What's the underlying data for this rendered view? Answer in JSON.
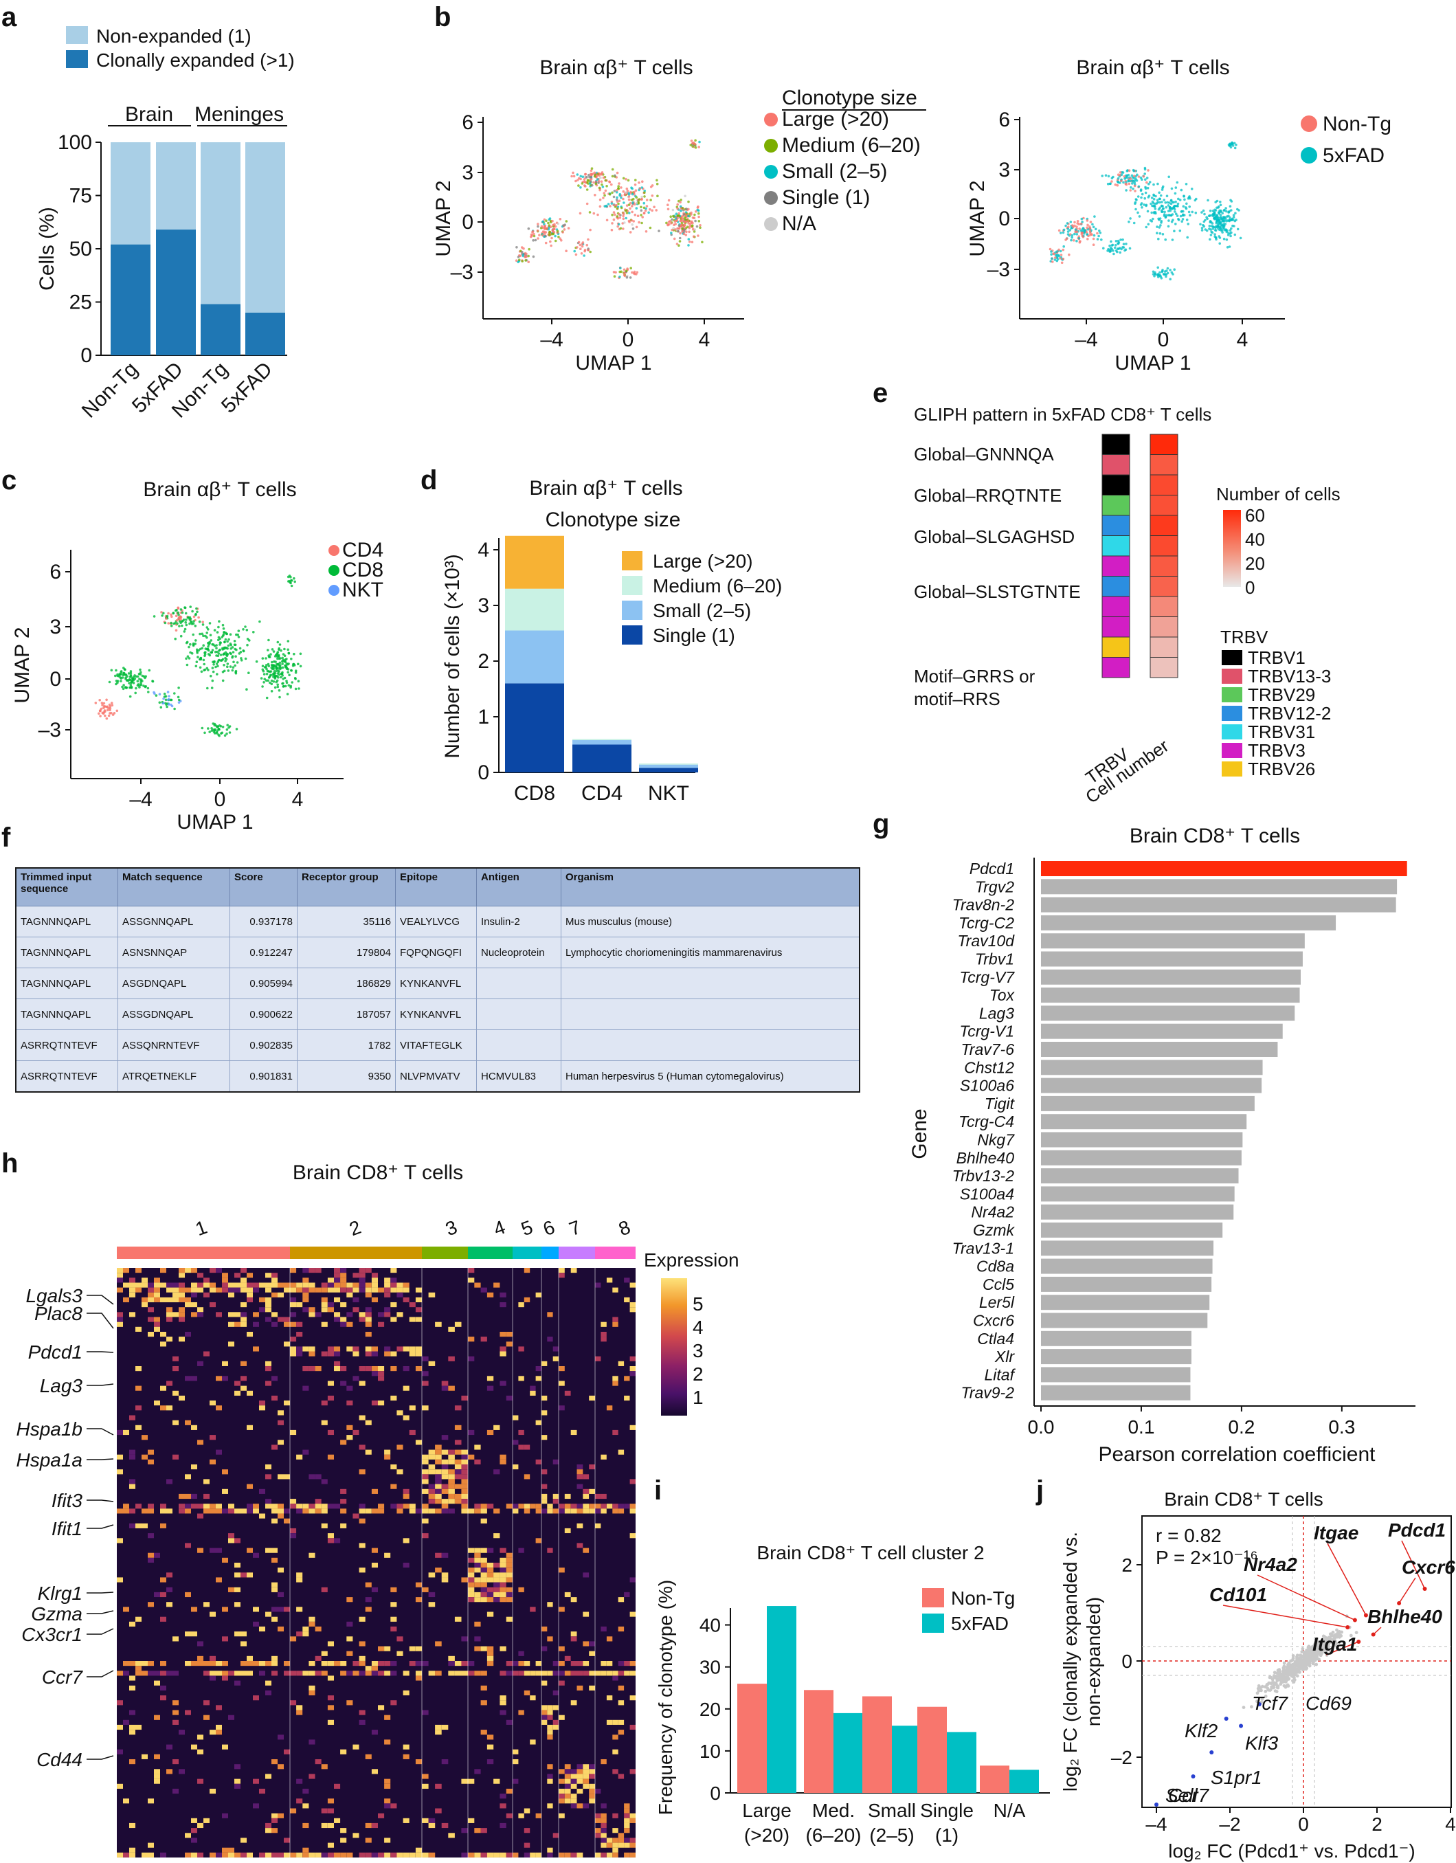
{
  "panel_letters": [
    "a",
    "b",
    "c",
    "d",
    "e",
    "f",
    "g",
    "h",
    "i",
    "j"
  ],
  "colors": {
    "light_blue": "#a9cfe6",
    "dark_blue": "#1f77b4",
    "large": "#f8766d",
    "medium": "#7cae00",
    "small": "#00bfc4",
    "single": "#7f7f7f",
    "na": "#cccccc",
    "nontg": "#f8766d",
    "fxfad": "#00bfc4",
    "cd4": "#f8766d",
    "cd8": "#00ba38",
    "nkt": "#619cff",
    "d_large": "#f7b234",
    "d_medium": "#c9f2e4",
    "d_small": "#8cc2f2",
    "d_single": "#0b47a5",
    "gbar_top": "#ff2a0a",
    "gbar": "#b3b3b3",
    "red_label": "#e0201a",
    "blue_label": "#2840d0"
  },
  "chart_data": [
    {
      "panel": "a",
      "type": "bar",
      "legend": [
        "Non-expanded (1)",
        "Clonally expanded (>1)"
      ],
      "group_labels": [
        "Brain",
        "Meninges"
      ],
      "categories": [
        "Non-Tg",
        "5xFAD",
        "Non-Tg",
        "5xFAD"
      ],
      "series": [
        {
          "name": "Clonally expanded (>1)",
          "values": [
            52,
            59,
            24,
            20
          ]
        }
      ],
      "ylabel": "Cells (%)",
      "yticks": [
        "0",
        "25",
        "50",
        "75",
        "100"
      ],
      "ylim": [
        0,
        100
      ]
    },
    {
      "panel": "b1",
      "type": "scatter",
      "title": "Brain αβ⁺ T cells",
      "legend_title": "Clonotype size",
      "legend": [
        "Large (>20)",
        "Medium (6–20)",
        "Small (2–5)",
        "Single (1)",
        "N/A"
      ],
      "xlabel": "UMAP 1",
      "ylabel": "UMAP 2",
      "xticks": [
        "–4",
        "0",
        "4"
      ],
      "yticks": [
        "6",
        "3",
        "0",
        "–3"
      ]
    },
    {
      "panel": "b2",
      "type": "scatter",
      "title": "Brain αβ⁺ T cells",
      "legend": [
        "Non-Tg",
        "5xFAD"
      ],
      "xlabel": "UMAP 1",
      "ylabel": "UMAP 2",
      "xticks": [
        "–4",
        "0",
        "4"
      ],
      "yticks": [
        "6",
        "3",
        "0",
        "–3"
      ]
    },
    {
      "panel": "c",
      "type": "scatter",
      "title": "Brain αβ⁺ T cells",
      "legend": [
        "CD4",
        "CD8",
        "NKT"
      ],
      "xlabel": "UMAP 1",
      "ylabel": "UMAP 2",
      "xticks": [
        "–4",
        "0",
        "4"
      ],
      "yticks": [
        "6",
        "3",
        "0",
        "–3"
      ]
    },
    {
      "panel": "d",
      "type": "bar",
      "title": "Brain αβ⁺ T cells",
      "subtitle": "Clonotype size",
      "categories": [
        "CD8",
        "CD4",
        "NKT"
      ],
      "legend": [
        "Large (>20)",
        "Medium (6–20)",
        "Small (2–5)",
        "Single (1)"
      ],
      "series": [
        {
          "name": "Single (1)",
          "values": [
            1.6,
            0.5,
            0.08
          ]
        },
        {
          "name": "Small (2–5)",
          "values": [
            0.95,
            0.08,
            0.06
          ]
        },
        {
          "name": "Medium (6–20)",
          "values": [
            0.75,
            0.02,
            0.02
          ]
        },
        {
          "name": "Large (>20)",
          "values": [
            0.95,
            0.0,
            0.0
          ]
        }
      ],
      "ylabel": "Number of cells (×10³)",
      "yticks": [
        "0",
        "1",
        "2",
        "3",
        "4"
      ],
      "ylim": [
        0,
        4.3
      ]
    },
    {
      "panel": "e",
      "type": "heatmap",
      "title": "GLIPH pattern in 5xFAD CD8⁺ T cells",
      "row_groups": [
        "Global–GNNNQA",
        "Global–RRQTNTE",
        "Global–SLGAGHSD",
        "Global–SLSTGTNTE",
        "Motif–GRRS or",
        "motif–RRS"
      ],
      "trbv_column": [
        "TRBV1",
        "TRBV13-3",
        "TRBV1",
        "TRBV29",
        "TRBV12-2",
        "TRBV31",
        "TRBV3",
        "TRBV12-2",
        "TRBV3",
        "TRBV3",
        "TRBV26",
        "TRBV3"
      ],
      "cell_number": [
        60,
        45,
        50,
        48,
        55,
        50,
        45,
        42,
        30,
        22,
        15,
        12
      ],
      "column_labels": [
        "TRBV",
        "Cell number"
      ],
      "colorbar_title": "Number of cells",
      "colorbar_ticks": [
        "60",
        "40",
        "20",
        "0"
      ],
      "trbv_legend_title": "TRBV",
      "trbv_legend": [
        "TRBV1",
        "TRBV13-3",
        "TRBV29",
        "TRBV12-2",
        "TRBV31",
        "TRBV3",
        "TRBV26"
      ],
      "trbv_colors": [
        "#000000",
        "#e0526a",
        "#5cc85a",
        "#2b8ee0",
        "#2fd8e8",
        "#d21ec4",
        "#f5c518"
      ]
    },
    {
      "panel": "f",
      "type": "table",
      "columns": [
        "Trimmed input sequence",
        "Match sequence",
        "Score",
        "Receptor group",
        "Epitope",
        "Antigen",
        "Organism"
      ],
      "rows": [
        [
          "TAGNNNQAPL",
          "ASSGNNQAPL",
          "0.937178",
          "35116",
          "VEALYLVCG",
          "Insulin-2",
          "Mus musculus (mouse)"
        ],
        [
          "TAGNNNQAPL",
          "ASNSNNQAP",
          "0.912247",
          "179804",
          "FQPQNGQFI",
          "Nucleoprotein",
          "Lymphocytic choriomeningitis mammarenavirus"
        ],
        [
          "TAGNNNQAPL",
          "ASGDNQAPL",
          "0.905994",
          "186829",
          "KYNKANVFL",
          "",
          ""
        ],
        [
          "TAGNNNQAPL",
          "ASSGDNQAPL",
          "0.900622",
          "187057",
          "KYNKANVFL",
          "",
          ""
        ],
        [
          "ASRRQTNTEVF",
          "ASSQNRNTEVF",
          "0.902835",
          "1782",
          "VITAFTEGLK",
          "",
          ""
        ],
        [
          "ASRRQTNTEVF",
          "ATRQETNEKLF",
          "0.901831",
          "9350",
          "NLVPMVATV",
          "HCMVUL83",
          "Human herpesvirus 5 (Human cytomegalovirus)"
        ]
      ]
    },
    {
      "panel": "g",
      "type": "bar",
      "title": "Brain CD8⁺ T cells",
      "categories": [
        "Pdcd1",
        "Trgv2",
        "Trav8n-2",
        "Tcrg-C2",
        "Trav10d",
        "Trbv1",
        "Tcrg-V7",
        "Tox",
        "Lag3",
        "Tcrg-V1",
        "Trav7-6",
        "Chst12",
        "S100a6",
        "Tigit",
        "Tcrg-C4",
        "Nkg7",
        "Bhlhe40",
        "Trbv13-2",
        "S100a4",
        "Nr4a2",
        "Gzmk",
        "Trav13-1",
        "Cd8a",
        "Ccl5",
        "Ler5l",
        "Cxcr6",
        "Ctla4",
        "Xlr",
        "Litaf",
        "Trav9-2"
      ],
      "values": [
        0.365,
        0.355,
        0.354,
        0.294,
        0.263,
        0.261,
        0.259,
        0.258,
        0.253,
        0.241,
        0.236,
        0.221,
        0.22,
        0.213,
        0.205,
        0.201,
        0.2,
        0.197,
        0.193,
        0.192,
        0.181,
        0.172,
        0.171,
        0.17,
        0.168,
        0.166,
        0.15,
        0.15,
        0.149,
        0.149
      ],
      "xlabel": "Pearson correlation coefficient",
      "ylabel": "Gene",
      "xticks": [
        "0.0",
        "0.1",
        "0.2",
        "0.3"
      ],
      "xlim": [
        0,
        0.37
      ]
    },
    {
      "panel": "h",
      "type": "heatmap",
      "title": "Brain CD8⁺ T cells",
      "clusters": [
        "1",
        "2",
        "3",
        "4",
        "5",
        "6",
        "7",
        "8"
      ],
      "cluster_colors": [
        "#f8766d",
        "#cd9600",
        "#7cae00",
        "#00be67",
        "#00bfc4",
        "#00a9ff",
        "#c77cff",
        "#ff61cc"
      ],
      "genes": [
        "Lgals3",
        "Plac8",
        "Pdcd1",
        "Lag3",
        "Hspa1b",
        "Hspa1a",
        "Ifit3",
        "Ifit1",
        "Klrg1",
        "Gzma",
        "Cx3cr1",
        "Ccr7",
        "Cd44"
      ],
      "colorbar_title": "Expression",
      "colorbar_ticks": [
        "5",
        "4",
        "3",
        "2",
        "1"
      ]
    },
    {
      "panel": "i",
      "type": "bar",
      "title": "Brain CD8⁺ T cell cluster 2",
      "categories": [
        "Large (>20)",
        "Med. (6–20)",
        "Small (2–5)",
        "Single (1)",
        "N/A"
      ],
      "series": [
        {
          "name": "Non-Tg",
          "values": [
            26,
            24.5,
            23,
            20.5,
            6.5
          ]
        },
        {
          "name": "5xFAD",
          "values": [
            44.5,
            19,
            16,
            14.5,
            5.5
          ]
        }
      ],
      "ylabel": "Frequency of clonotype (%)",
      "yticks": [
        "0",
        "10",
        "20",
        "30",
        "40"
      ],
      "ylim": [
        0,
        47
      ]
    },
    {
      "panel": "j",
      "type": "scatter",
      "title": "Brain CD8⁺ T cells",
      "stat_r": "r = 0.82",
      "stat_p": "P = 2×10⁻¹⁶",
      "red_genes": [
        "Itgae",
        "Pdcd1",
        "Nr4a2",
        "Cxcr6",
        "Cd101",
        "Bhlhe40",
        "Itga1"
      ],
      "black_genes": [
        "Cd69"
      ],
      "blue_genes": [
        "Tcf7",
        "Klf2",
        "Klf3",
        "S1pr1",
        "Ccr7",
        "Sell"
      ],
      "xlabel": "log₂ FC (Pdcd1⁺ vs. Pdcd1⁻)",
      "ylabel_1": "log₂ FC (clonally expanded vs.",
      "ylabel_2": "non-expanded)",
      "xticks": [
        "–4",
        "–2",
        "0",
        "2",
        "4"
      ],
      "yticks": [
        "2",
        "0",
        "–2"
      ]
    }
  ]
}
